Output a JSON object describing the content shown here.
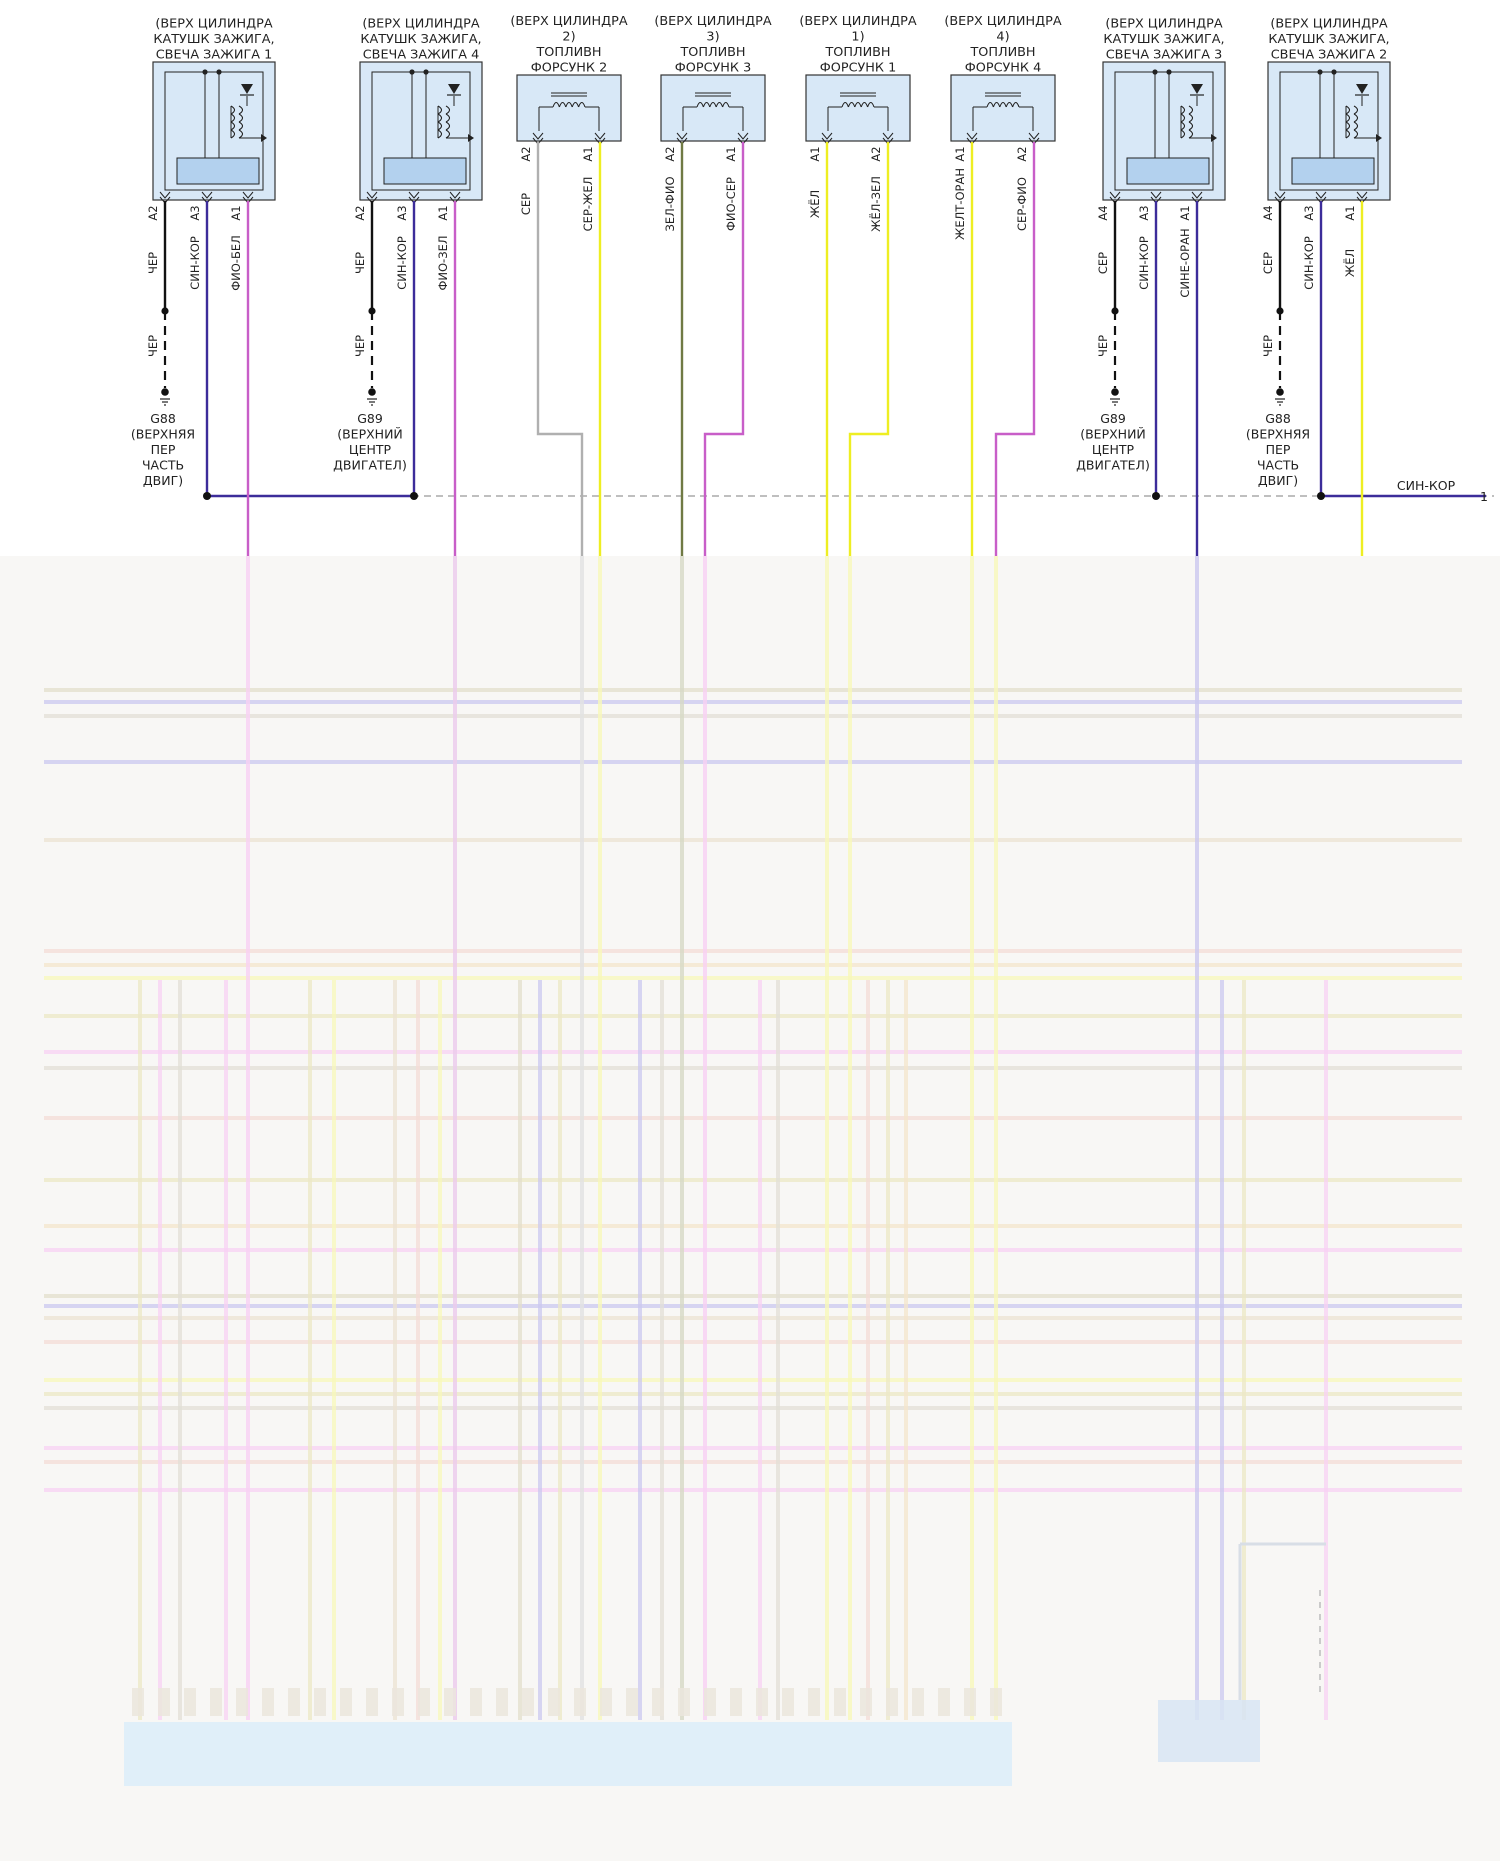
{
  "colors": {
    "box_fill": "#d8e8f7",
    "box_stroke": "#333333",
    "module_fill": "#b3d1ee",
    "wire_black": "#111111",
    "wire_gray": "#b0b0b0",
    "wire_violet": "#c85ec8",
    "wire_blue": "#3c2c9a",
    "wire_yellow": "#eeee22",
    "wire_green": "#707a44",
    "shielding_dashed": "#999999"
  },
  "components": [
    {
      "type": "coil",
      "title": [
        "(ВЕРХ ЦИЛИНДРА",
        "КАТУШК ЗАЖИГА,",
        "СВЕЧА ЗАЖИГА 1"
      ],
      "pins": [
        {
          "pin": "A2",
          "label": "ЧЕР",
          "color": "wire_black",
          "ground": true,
          "ground_label": "ЧЕР",
          "ground_name": [
            "G88",
            "(ВЕРХНЯЯ",
            "ПЕР",
            "ЧАСТЬ",
            "ДВИГ)"
          ]
        },
        {
          "pin": "A3",
          "label": "СИН-КОР",
          "color": "wire_blue",
          "ground": false
        },
        {
          "pin": "A1",
          "label": "ФИО-БЕЛ",
          "color": "wire_violet",
          "ground": false
        }
      ]
    },
    {
      "type": "coil",
      "title": [
        "(ВЕРХ ЦИЛИНДРА",
        "КАТУШК ЗАЖИГА,",
        "СВЕЧА ЗАЖИГА 4"
      ],
      "pins": [
        {
          "pin": "A2",
          "label": "ЧЕР",
          "color": "wire_black",
          "ground": true,
          "ground_label": "ЧЕР",
          "ground_name": [
            "G89",
            "(ВЕРХНИЙ",
            "ЦЕНТР",
            "ДВИГАТЕЛ)"
          ]
        },
        {
          "pin": "A3",
          "label": "СИН-КОР",
          "color": "wire_blue",
          "ground": false
        },
        {
          "pin": "A1",
          "label": "ФИО-ЗЕЛ",
          "color": "wire_violet",
          "ground": false
        }
      ]
    },
    {
      "type": "injector",
      "title": [
        "(ВЕРХ ЦИЛИНДРА",
        "2)",
        "ТОПЛИВН",
        "ФОРСУНК 2"
      ],
      "pins": [
        {
          "pin": "A2",
          "label": "СЕР",
          "color": "wire_gray"
        },
        {
          "pin": "A1",
          "label": "СЕР-ЖЕЛ",
          "color": "wire_yellow"
        }
      ]
    },
    {
      "type": "injector",
      "title": [
        "(ВЕРХ ЦИЛИНДРА",
        "3)",
        "ТОПЛИВН",
        "ФОРСУНК 3"
      ],
      "pins": [
        {
          "pin": "A2",
          "label": "ЗЕЛ-ФИО",
          "color": "wire_green"
        },
        {
          "pin": "A1",
          "label": "ФИО-СЕР",
          "color": "wire_violet"
        }
      ]
    },
    {
      "type": "injector",
      "title": [
        "(ВЕРХ ЦИЛИНДРА",
        "1)",
        "ТОПЛИВН",
        "ФОРСУНК 1"
      ],
      "pins": [
        {
          "pin": "A1",
          "label": "ЖЁЛ",
          "color": "wire_yellow"
        },
        {
          "pin": "A2",
          "label": "ЖЁЛ-ЗЕЛ",
          "color": "wire_yellow"
        }
      ]
    },
    {
      "type": "injector",
      "title": [
        "(ВЕРХ ЦИЛИНДРА",
        "4)",
        "ТОПЛИВН",
        "ФОРСУНК 4"
      ],
      "pins": [
        {
          "pin": "A1",
          "label": "ЖЕЛТ-ОРАН",
          "color": "wire_yellow"
        },
        {
          "pin": "A2",
          "label": "СЕР-ФИО",
          "color": "wire_violet"
        }
      ]
    },
    {
      "type": "coil",
      "title": [
        "(ВЕРХ ЦИЛИНДРА",
        "КАТУШК ЗАЖИГА,",
        "СВЕЧА ЗАЖИГА 3"
      ],
      "pins": [
        {
          "pin": "A4",
          "label": "СЕР",
          "color": "wire_black",
          "ground": true,
          "ground_label": "ЧЕР",
          "ground_name": [
            "G89",
            "(ВЕРХНИЙ",
            "ЦЕНТР",
            "ДВИГАТЕЛ)"
          ]
        },
        {
          "pin": "A3",
          "label": "СИН-КОР",
          "color": "wire_blue",
          "ground": false
        },
        {
          "pin": "A1",
          "label": "СИНЕ-ОРАН",
          "color": "wire_blue",
          "ground": false
        }
      ]
    },
    {
      "type": "coil",
      "title": [
        "(ВЕРХ ЦИЛИНДРА",
        "КАТУШК ЗАЖИГА,",
        "СВЕЧА ЗАЖИГА 2"
      ],
      "pins": [
        {
          "pin": "A4",
          "label": "СЕР",
          "color": "wire_black",
          "ground": true,
          "ground_label": "ЧЕР",
          "ground_name": [
            "G88",
            "(ВЕРХНЯЯ",
            "ПЕР",
            "ЧАСТЬ",
            "ДВИГ)"
          ]
        },
        {
          "pin": "A3",
          "label": "СИН-КОР",
          "color": "wire_blue",
          "ground": false
        },
        {
          "pin": "A1",
          "label": "ЖЁЛ",
          "color": "wire_yellow",
          "ground": false
        }
      ]
    }
  ],
  "continuation": {
    "label": "СИН-КОР",
    "page_ref": "1"
  }
}
